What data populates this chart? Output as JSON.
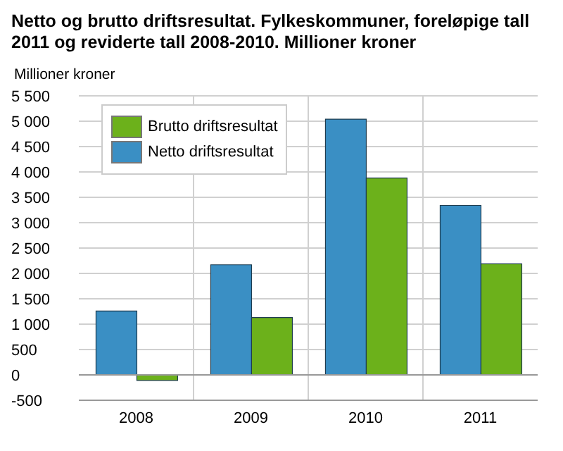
{
  "chart_data": {
    "type": "bar",
    "title": "Netto og brutto driftsresultat. Fylkeskommuner, foreløpige tall 2011 og reviderte tall 2008-2010. Millioner kroner",
    "ylabel": "Millioner kroner",
    "categories": [
      "2008",
      "2009",
      "2010",
      "2011"
    ],
    "series": [
      {
        "name": "Netto driftsresultat",
        "color": "#3a8fc4",
        "values": [
          1260,
          2170,
          5040,
          3340
        ]
      },
      {
        "name": "Brutto driftsresultat",
        "color": "#6cb11b",
        "values": [
          -110,
          1130,
          3880,
          2190
        ]
      }
    ],
    "ylim": [
      -500,
      5500
    ],
    "yticks": [
      -500,
      0,
      500,
      {
        "value": 1000,
        "label": "1 000"
      },
      {
        "value": 1500,
        "label": "1 500"
      },
      {
        "value": 2000,
        "label": "2 000"
      },
      {
        "value": 2500,
        "label": "2 500"
      },
      {
        "value": 3000,
        "label": "3 000"
      },
      {
        "value": 3500,
        "label": "3 500"
      },
      {
        "value": 4000,
        "label": "4 000"
      },
      {
        "value": 4500,
        "label": "4 500"
      },
      {
        "value": 5000,
        "label": "5 000"
      },
      {
        "value": 5500,
        "label": "5 500"
      }
    ],
    "grid": true,
    "legend": "top left"
  }
}
